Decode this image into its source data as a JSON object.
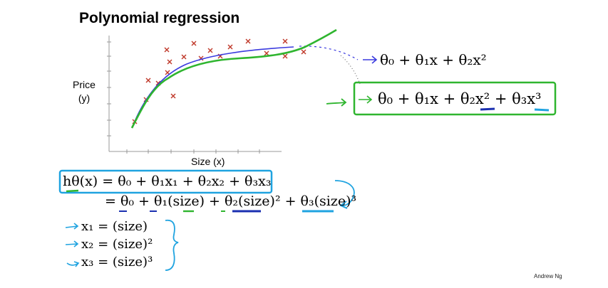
{
  "title": "Polynomial regression",
  "y_label_line1": "Price",
  "y_label_line2": "(y)",
  "x_label": "Size (x)",
  "quadratic_model": "θ₀ + θ₁x + θ₂x²",
  "cubic_model": "θ₀ + θ₁x + θ₂x² + θ₃x³",
  "hypothesis_line1": "hθ(x) = θ₀ + θ₁x₁ + θ₂x₂ + θ₃x₃",
  "hypothesis_line2": "= θ₀ + θ₁(size) + θ₂(size)² + θ₃(size)³",
  "features": [
    "x₁ = (size)",
    "x₂ = (size)²",
    "x₃ = (size)³"
  ],
  "credit": "Andrew Ng",
  "colors": {
    "data_marker": "#c0392b",
    "quadratic_curve": "#3a3adf",
    "cubic_curve": "#2fb52f",
    "annotation_blue": "#1fa3e0",
    "annotation_green": "#2fb52f",
    "annotation_navy": "#1a2fb0"
  }
}
